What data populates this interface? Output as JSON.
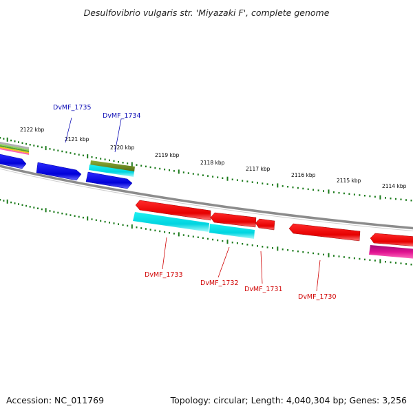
{
  "title": "Desulfovibrio vulgaris str. 'Miyazaki F', complete genome",
  "footer": {
    "accession": "Accession: NC_011769",
    "summary": "Topology: circular; Length: 4,040,304 bp; Genes: 3,256"
  },
  "colors": {
    "forward_gene": "#1010e6",
    "reverse_gene": "#ee0000",
    "cds_feature": "#00d8e0",
    "backbone": "#8c8c8c",
    "ticks": "#1a7a1a",
    "olive_feature": "#6b8e23",
    "magenta_feature": "#d0108a"
  },
  "scale_labels": [
    "2122 kbp",
    "2121 kbp",
    "2120 kbp",
    "2119 kbp",
    "2118 kbp",
    "2117 kbp",
    "2116 kbp",
    "2115 kbp",
    "2114 kbp"
  ],
  "gene_labels": {
    "forward": [
      "DvMF_1735",
      "DvMF_1734"
    ],
    "reverse": [
      "DvMF_1733",
      "DvMF_1732",
      "DvMF_1731",
      "DvMF_1730"
    ]
  }
}
